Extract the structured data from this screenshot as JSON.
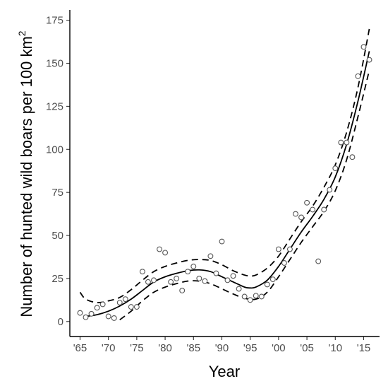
{
  "chart_data": {
    "type": "scatter",
    "title": "",
    "xlabel": "Year",
    "ylabel": "Number of hunted wild boars per 100 km",
    "ylabel_superscript": "2",
    "xlim": [
      1963.2,
      2017.8
    ],
    "ylim": [
      -8.7,
      181
    ],
    "x_ticks": [
      1965,
      1970,
      1975,
      1980,
      1985,
      1990,
      1995,
      2000,
      2005,
      2010,
      2015
    ],
    "x_tick_labels": [
      "'65",
      "'70",
      "'75",
      "'80",
      "'85",
      "'90",
      "'95",
      "'00",
      "'05",
      "'10",
      "'15"
    ],
    "y_ticks": [
      0,
      25,
      50,
      75,
      100,
      125,
      150,
      175
    ],
    "y_tick_labels": [
      "0",
      "25",
      "50",
      "75",
      "100",
      "125",
      "150",
      "175"
    ],
    "grid": false,
    "legend": "none",
    "points": [
      {
        "x": 1965,
        "y": 5
      },
      {
        "x": 1966,
        "y": 2.5
      },
      {
        "x": 1967,
        "y": 4.5
      },
      {
        "x": 1968,
        "y": 8
      },
      {
        "x": 1969,
        "y": 10
      },
      {
        "x": 1970,
        "y": 3
      },
      {
        "x": 1971,
        "y": 2
      },
      {
        "x": 1972,
        "y": 11
      },
      {
        "x": 1973,
        "y": 13
      },
      {
        "x": 1974,
        "y": 8.5
      },
      {
        "x": 1975,
        "y": 8.5
      },
      {
        "x": 1976,
        "y": 29
      },
      {
        "x": 1977,
        "y": 23
      },
      {
        "x": 1978,
        "y": 24
      },
      {
        "x": 1979,
        "y": 42
      },
      {
        "x": 1980,
        "y": 40
      },
      {
        "x": 1981,
        "y": 23
      },
      {
        "x": 1982,
        "y": 25
      },
      {
        "x": 1983,
        "y": 18
      },
      {
        "x": 1984,
        "y": 29
      },
      {
        "x": 1985,
        "y": 32
      },
      {
        "x": 1986,
        "y": 25
      },
      {
        "x": 1987,
        "y": 23.5
      },
      {
        "x": 1988,
        "y": 38
      },
      {
        "x": 1989,
        "y": 28
      },
      {
        "x": 1990,
        "y": 46.5
      },
      {
        "x": 1991,
        "y": 24
      },
      {
        "x": 1992,
        "y": 26.5
      },
      {
        "x": 1993,
        "y": 19
      },
      {
        "x": 1994,
        "y": 14.5
      },
      {
        "x": 1995,
        "y": 12.5
      },
      {
        "x": 1996,
        "y": 15
      },
      {
        "x": 1997,
        "y": 14.5
      },
      {
        "x": 1998,
        "y": 21.5
      },
      {
        "x": 1999,
        "y": 24.5
      },
      {
        "x": 2000,
        "y": 42
      },
      {
        "x": 2001,
        "y": 34
      },
      {
        "x": 2002,
        "y": 42
      },
      {
        "x": 2003,
        "y": 62.5
      },
      {
        "x": 2004,
        "y": 60.5
      },
      {
        "x": 2005,
        "y": 69
      },
      {
        "x": 2006,
        "y": 65
      },
      {
        "x": 2007,
        "y": 35
      },
      {
        "x": 2008,
        "y": 65
      },
      {
        "x": 2009,
        "y": 76.5
      },
      {
        "x": 2010,
        "y": 89
      },
      {
        "x": 2011,
        "y": 104
      },
      {
        "x": 2012,
        "y": 104
      },
      {
        "x": 2013,
        "y": 95.5
      },
      {
        "x": 2014,
        "y": 142.5
      },
      {
        "x": 2015,
        "y": 159.5
      },
      {
        "x": 2016,
        "y": 152
      }
    ],
    "fit": {
      "x": [
        1966,
        1968,
        1970,
        1972,
        1974,
        1976,
        1978,
        1980,
        1982,
        1984,
        1986,
        1988,
        1990,
        1992,
        1994,
        1995,
        1996,
        1998,
        2000,
        2002,
        2004,
        2006,
        2008,
        2010,
        2012,
        2014,
        2016
      ],
      "y": [
        3,
        4,
        6,
        9,
        13,
        18,
        23,
        26,
        28,
        29.5,
        30,
        29,
        26,
        23,
        20,
        19.5,
        20,
        24,
        32,
        42,
        52,
        61,
        71,
        84,
        103,
        128,
        157
      ]
    },
    "ci_upper": {
      "x": [
        1965,
        1966,
        1968,
        1970,
        1972,
        1974,
        1976,
        1978,
        1980,
        1982,
        1984,
        1986,
        1988,
        1990,
        1992,
        1994,
        1995,
        1996,
        1998,
        2000,
        2002,
        2004,
        2006,
        2008,
        2010,
        2012,
        2014,
        2016
      ],
      "y": [
        17,
        13,
        11,
        12,
        14,
        18.5,
        24,
        29,
        32,
        34,
        35.5,
        36,
        35.5,
        33,
        29.5,
        27,
        26.5,
        27,
        31,
        38,
        48,
        58,
        67,
        78,
        91,
        110,
        136,
        170
      ]
    },
    "ci_lower": {
      "x": [
        1972,
        1974,
        1976,
        1978,
        1980,
        1982,
        1984,
        1986,
        1988,
        1990,
        1992,
        1994,
        1996,
        1998,
        2000,
        2002,
        2004,
        2006,
        2008,
        2010,
        2012,
        2014,
        2016
      ],
      "y": [
        1,
        6,
        12,
        17,
        20,
        22,
        23.5,
        23.5,
        22,
        19,
        16,
        13.5,
        13,
        17,
        26,
        36,
        46,
        55,
        64,
        76,
        94,
        119,
        146
      ]
    }
  }
}
